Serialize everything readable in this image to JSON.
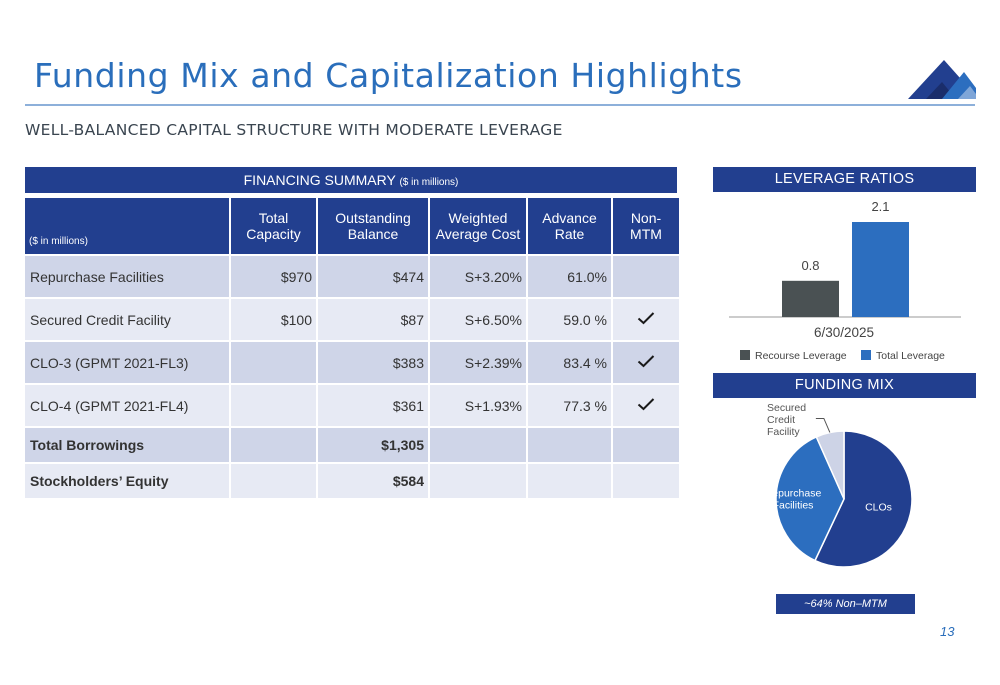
{
  "page": {
    "title": "Funding Mix and Capitalization Highlights",
    "subtitle": "WELL-BALANCED CAPITAL STRUCTURE WITH MODERATE LEVERAGE",
    "page_number": "13"
  },
  "financing": {
    "heading": "FINANCING SUMMARY",
    "heading_note": "($ in millions)",
    "corner_note": "($ in millions)",
    "columns": [
      "Total Capacity",
      "Outstanding Balance",
      "Weighted Average Cost",
      "Advance Rate",
      "Non-MTM"
    ],
    "column_lines": [
      [
        "Total",
        "Capacity"
      ],
      [
        "Outstanding",
        "Balance"
      ],
      [
        "Weighted",
        "Average Cost"
      ],
      [
        "Advance",
        "Rate"
      ],
      [
        "Non-",
        "MTM"
      ]
    ],
    "rows": [
      {
        "label": "Repurchase Facilities",
        "capacity": "$970",
        "balance": "$474",
        "cost": "S+3.20%",
        "advance": "61.0%",
        "non_mtm": false
      },
      {
        "label": "Secured Credit Facility",
        "capacity": "$100",
        "balance": "$87",
        "cost": "S+6.50%",
        "advance": "59.0 %",
        "non_mtm": true
      },
      {
        "label": "CLO-3 (GPMT 2021-FL3)",
        "capacity": "",
        "balance": "$383",
        "cost": "S+2.39%",
        "advance": "83.4 %",
        "non_mtm": true
      },
      {
        "label": "CLO-4 (GPMT 2021-FL4)",
        "capacity": "",
        "balance": "$361",
        "cost": "S+1.93%",
        "advance": "77.3 %",
        "non_mtm": true
      }
    ],
    "totals": [
      {
        "label": "Total Borrowings",
        "balance": "$1,305"
      },
      {
        "label": "Stockholders’ Equity",
        "balance": "$584"
      }
    ]
  },
  "leverage": {
    "heading": "LEVERAGE RATIOS"
  },
  "funding_mix": {
    "heading": "FUNDING MIX",
    "note": "~64% Non–MTM"
  },
  "colors": {
    "navy": "#223f8f",
    "blue": "#2a6ebb",
    "recourse": "#4a5153",
    "total": "#2c6ebf",
    "pie_clos": "#223f8f",
    "pie_repo": "#2c6ebf",
    "pie_secured": "#cdd3e6"
  },
  "chart_data": [
    {
      "type": "bar",
      "title": "LEVERAGE RATIOS",
      "categories": [
        "6/30/2025"
      ],
      "series": [
        {
          "name": "Recourse Leverage",
          "values": [
            0.8
          ]
        },
        {
          "name": "Total Leverage",
          "values": [
            2.1
          ]
        }
      ],
      "data_labels": [
        "0.8",
        "2.1"
      ],
      "ylim": [
        0,
        2.5
      ],
      "grid": false,
      "legend": "bottom"
    },
    {
      "type": "pie",
      "title": "FUNDING MIX",
      "labels": [
        "CLOs",
        "Repurchase Facilities",
        "Secured Credit Facility"
      ],
      "label_lines": [
        [
          "CLOs"
        ],
        [
          "Repurchase",
          "Facilities"
        ],
        [
          "Secured",
          "Credit",
          "Facility"
        ]
      ],
      "values": [
        744,
        474,
        87
      ],
      "legend": "none"
    }
  ]
}
